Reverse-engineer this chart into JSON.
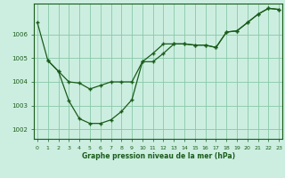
{
  "title": "Graphe pression niveau de la mer (hPa)",
  "bg_color": "#cceee0",
  "line_color": "#1a5c1a",
  "grid_color": "#88c8a8",
  "xlim": [
    -0.3,
    23.3
  ],
  "ylim": [
    1001.6,
    1007.3
  ],
  "yticks": [
    1002,
    1003,
    1004,
    1005,
    1006
  ],
  "xticks": [
    0,
    1,
    2,
    3,
    4,
    5,
    6,
    7,
    8,
    9,
    10,
    11,
    12,
    13,
    14,
    15,
    16,
    17,
    18,
    19,
    20,
    21,
    22,
    23
  ],
  "series1_x": [
    0,
    1,
    2,
    3,
    4,
    5,
    6,
    7,
    8,
    9,
    10,
    11,
    12,
    13,
    14,
    15,
    16,
    17,
    18,
    19,
    20,
    21,
    22,
    23
  ],
  "series1_y": [
    1006.5,
    1004.9,
    1004.45,
    1004.0,
    1003.95,
    1003.7,
    1003.85,
    1004.0,
    1004.0,
    1004.0,
    1004.85,
    1005.2,
    1005.6,
    1005.6,
    1005.6,
    1005.55,
    1005.55,
    1005.45,
    1006.1,
    1006.15,
    1006.5,
    1006.85,
    1007.1,
    1007.05
  ],
  "series2_x": [
    1,
    2,
    3,
    4,
    5,
    6,
    7,
    8,
    9,
    10,
    11,
    12,
    13,
    14,
    15,
    16,
    17,
    18,
    19,
    20,
    21,
    22,
    23
  ],
  "series2_y": [
    1004.9,
    1004.45,
    1003.2,
    1002.45,
    1002.25,
    1002.25,
    1002.4,
    1002.75,
    1003.25,
    1004.85,
    1004.85,
    1005.2,
    1005.6,
    1005.6,
    1005.55,
    1005.55,
    1005.45,
    1006.1,
    1006.15,
    1006.5,
    1006.85,
    1007.1,
    1007.05
  ]
}
